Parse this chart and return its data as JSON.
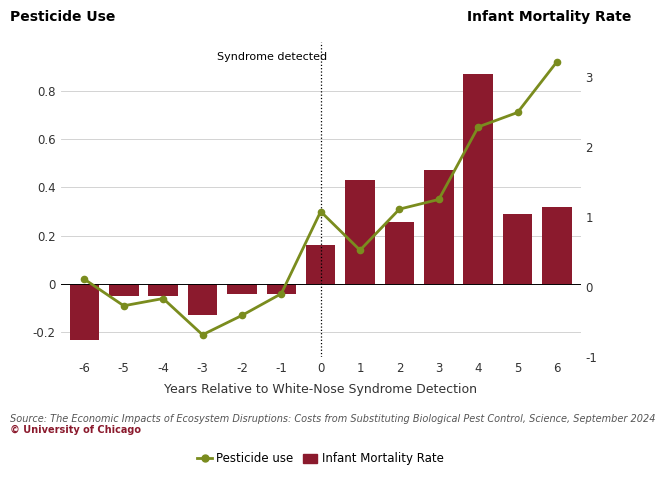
{
  "x_labels": [
    -6,
    -5,
    -4,
    -3,
    -2,
    -1,
    0,
    1,
    2,
    3,
    4,
    5,
    6
  ],
  "bar_values": [
    -0.23,
    -0.05,
    -0.05,
    -0.13,
    -0.04,
    -0.04,
    0.16,
    0.43,
    0.255,
    0.47,
    0.87,
    0.29,
    0.32
  ],
  "line_values": [
    0.02,
    -0.09,
    -0.06,
    -0.21,
    -0.13,
    -0.04,
    0.3,
    0.14,
    0.31,
    0.35,
    0.65,
    0.71,
    0.92
  ],
  "bar_color": "#8B1A2D",
  "line_color": "#7A8C1E",
  "background_color": "#FFFFFF",
  "left_ylabel": "Pesticide Use",
  "right_ylabel": "Infant Mortality Rate",
  "xlabel": "Years Relative to White-Nose Syndrome Detection",
  "annotation_text": "Syndrome detected",
  "left_ylim": [
    -0.3,
    1.0
  ],
  "right_ylim": [
    -1.0,
    3.5
  ],
  "left_yticks": [
    -0.2,
    0.0,
    0.2,
    0.4,
    0.6,
    0.8
  ],
  "right_yticks": [
    -1,
    0,
    1,
    2,
    3
  ],
  "source_text": "Source: The Economic Impacts of Ecosystem Disruptions: Costs from Substituting Biological Pest Control, Science, September 2024",
  "copyright_text": "© University of Chicago",
  "legend_pesticide": "Pesticide use",
  "legend_infant": "Infant Mortality Rate",
  "title_fontsize": 10,
  "label_fontsize": 9,
  "tick_fontsize": 8.5,
  "source_fontsize": 7
}
